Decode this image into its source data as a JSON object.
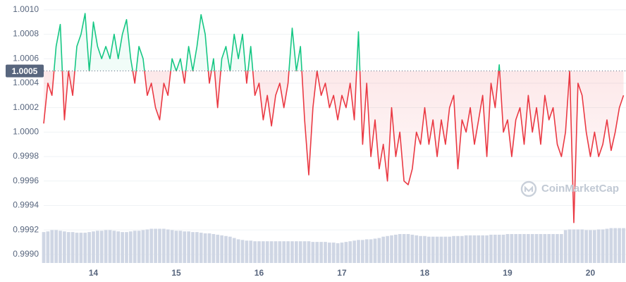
{
  "chart_data": {
    "type": "line",
    "baseline": 1.0005,
    "watermark": "CoinMarketCap",
    "color_above": "#16c784",
    "color_below": "#ea3943",
    "grid": true,
    "xlim": [
      13.4,
      20.43
    ],
    "xticks": [
      14,
      15,
      16,
      17,
      18,
      19,
      20
    ],
    "ylim": [
      0.99893,
      1.00108
    ],
    "yticks": [
      {
        "value": 1.001,
        "label": "1.0010"
      },
      1.0008,
      1.0006,
      1.0004,
      1.0002,
      {
        "value": 1,
        "label": "1.0000"
      },
      0.9998,
      0.9996,
      0.9994,
      0.9992,
      {
        "value": 0.999,
        "label": "0.9990"
      }
    ],
    "x": [
      13.4,
      13.45,
      13.5,
      13.55,
      13.6,
      13.65,
      13.7,
      13.75,
      13.8,
      13.85,
      13.9,
      13.95,
      14,
      14.05,
      14.1,
      14.15,
      14.2,
      14.25,
      14.3,
      14.35,
      14.4,
      14.45,
      14.5,
      14.55,
      14.6,
      14.65,
      14.7,
      14.75,
      14.8,
      14.85,
      14.9,
      14.95,
      15,
      15.05,
      15.1,
      15.15,
      15.2,
      15.25,
      15.3,
      15.35,
      15.4,
      15.45,
      15.5,
      15.55,
      15.6,
      15.65,
      15.7,
      15.75,
      15.8,
      15.85,
      15.9,
      15.95,
      16,
      16.05,
      16.1,
      16.15,
      16.2,
      16.25,
      16.3,
      16.35,
      16.4,
      16.45,
      16.5,
      16.55,
      16.6,
      16.65,
      16.7,
      16.75,
      16.8,
      16.85,
      16.9,
      16.95,
      17,
      17.05,
      17.1,
      17.15,
      17.2,
      17.25,
      17.3,
      17.35,
      17.4,
      17.45,
      17.5,
      17.55,
      17.6,
      17.65,
      17.7,
      17.75,
      17.8,
      17.85,
      17.9,
      17.95,
      18,
      18.05,
      18.1,
      18.15,
      18.2,
      18.25,
      18.3,
      18.35,
      18.4,
      18.45,
      18.5,
      18.55,
      18.6,
      18.65,
      18.7,
      18.75,
      18.8,
      18.85,
      18.9,
      18.95,
      19,
      19.05,
      19.1,
      19.15,
      19.2,
      19.25,
      19.3,
      19.35,
      19.4,
      19.45,
      19.5,
      19.55,
      19.6,
      19.65,
      19.7,
      19.75,
      19.8,
      19.85,
      19.9,
      19.95,
      20,
      20.05,
      20.1,
      20.15,
      20.2,
      20.25,
      20.3,
      20.35,
      20.4
    ],
    "values": [
      1.00007,
      1.0004,
      1.0003,
      1.0007,
      1.00088,
      1.0001,
      1.0005,
      1.0003,
      1.0007,
      1.0008,
      1.00097,
      1.0005,
      1.0009,
      1.0007,
      1.0006,
      1.0007,
      1.0006,
      1.0008,
      1.0006,
      1.0008,
      1.00092,
      1.0006,
      1.0004,
      1.0007,
      1.0006,
      1.0003,
      1.0004,
      1.0002,
      1.0001,
      1.0004,
      1.0003,
      1.0006,
      1.0005,
      1.0006,
      1.0004,
      1.0007,
      1.0005,
      1.0007,
      1.00096,
      1.0008,
      1.0004,
      1.0006,
      1.0002,
      1.0006,
      1.0007,
      1.0005,
      1.0008,
      1.0006,
      1.0008,
      1.0004,
      1.0007,
      1.0003,
      1.0004,
      1.0001,
      1.0003,
      1.00005,
      1.0003,
      1.0004,
      1.0002,
      1.0004,
      1.00085,
      1.0005,
      1.0007,
      1.0001,
      0.99965,
      1.0002,
      1.0005,
      1.0003,
      1.0004,
      1.0002,
      1.0003,
      1.0001,
      1.0003,
      1.0002,
      1.0004,
      1.0001,
      1.00082,
      0.9999,
      1.0004,
      0.9998,
      1.0001,
      0.9997,
      0.9999,
      0.9996,
      1.0002,
      0.9998,
      1,
      0.9996,
      0.99957,
      0.9997,
      1,
      0.9999,
      1.0002,
      0.9999,
      1.0001,
      0.9998,
      1.0001,
      0.9999,
      1.0002,
      1.0003,
      0.9997,
      1.0001,
      1,
      1.0002,
      0.9999,
      1.0001,
      1.0003,
      0.9998,
      1.0004,
      1.0002,
      1.00055,
      1,
      1.0001,
      0.9998,
      1.0001,
      1.0002,
      0.9999,
      1.0003,
      1,
      1.0002,
      0.9999,
      1.0003,
      1.0001,
      1.0002,
      0.9999,
      0.9998,
      1,
      1.0005,
      0.99926,
      1.0004,
      1.0003,
      1,
      0.9998,
      1,
      0.9998,
      0.9999,
      1.0001,
      0.99985,
      1,
      1.0002,
      1.0003
    ],
    "volume": {
      "color": "#cfd6e4",
      "lim": [
        0,
        400
      ],
      "values": [
        47,
        48,
        50,
        50,
        49,
        48,
        47,
        47,
        46,
        46,
        46,
        47,
        48,
        49,
        49,
        50,
        50,
        49,
        48,
        47,
        47,
        48,
        49,
        49,
        50,
        51,
        52,
        52,
        52,
        52,
        51,
        50,
        49,
        49,
        48,
        48,
        47,
        47,
        46,
        45,
        45,
        44,
        43,
        42,
        41,
        40,
        38,
        36,
        35,
        34,
        34,
        33,
        33,
        33,
        33,
        33,
        33,
        33,
        33,
        33,
        33,
        33,
        33,
        33,
        33,
        32,
        32,
        32,
        32,
        31,
        31,
        30,
        31,
        32,
        33,
        34,
        35,
        35,
        36,
        36,
        37,
        38,
        40,
        41,
        42,
        43,
        44,
        44,
        44,
        43,
        42,
        41,
        41,
        40,
        40,
        40,
        40,
        40,
        40,
        41,
        41,
        41,
        42,
        42,
        42,
        42,
        42,
        42,
        43,
        43,
        43,
        43,
        44,
        44,
        44,
        44,
        44,
        44,
        44,
        44,
        44,
        44,
        44,
        44,
        44,
        44,
        50,
        51,
        51,
        51,
        51,
        50,
        50,
        50,
        51,
        51,
        52,
        53,
        53,
        53,
        53
      ]
    }
  }
}
